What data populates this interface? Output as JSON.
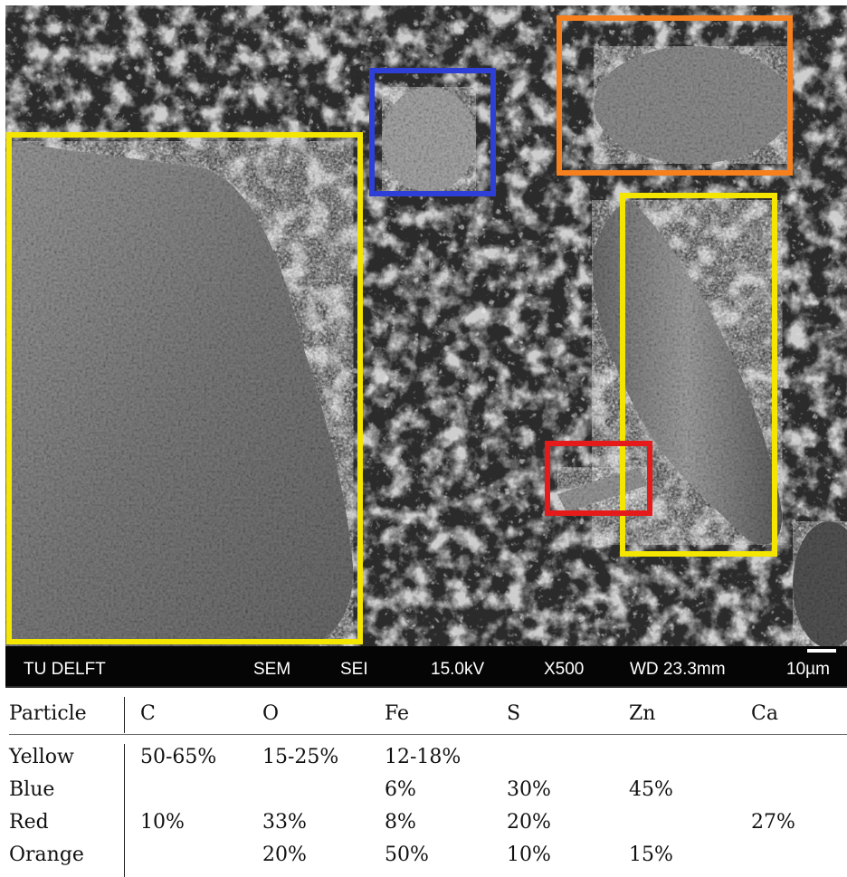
{
  "sem_info": {
    "institution": "TU DELFT",
    "instrument": "SEM",
    "detector": "SEI",
    "voltage": "15.0kV",
    "magnification": "X500",
    "working_distance": "WD 23.3mm",
    "scale": "10µm"
  },
  "highlight_boxes": {
    "yellow_color": "#f5e600",
    "blue_color": "#2d3fd6",
    "orange_color": "#f7801e",
    "red_color": "#e51b1b"
  },
  "table": {
    "headers": [
      "Particle",
      "C",
      "O",
      "Fe",
      "S",
      "Zn",
      "Ca"
    ],
    "rows": [
      {
        "particle": "Yellow",
        "C": "50-65%",
        "O": "15-25%",
        "Fe": "12-18%",
        "S": "",
        "Zn": "",
        "Ca": ""
      },
      {
        "particle": "Blue",
        "C": "",
        "O": "",
        "Fe": "6%",
        "S": "30%",
        "Zn": "45%",
        "Ca": ""
      },
      {
        "particle": "Red",
        "C": "10%",
        "O": "33%",
        "Fe": "8%",
        "S": "20%",
        "Zn": "",
        "Ca": "27%"
      },
      {
        "particle": "Orange",
        "C": "",
        "O": "20%",
        "Fe": "50%",
        "S": "10%",
        "Zn": "15%",
        "Ca": ""
      }
    ]
  }
}
